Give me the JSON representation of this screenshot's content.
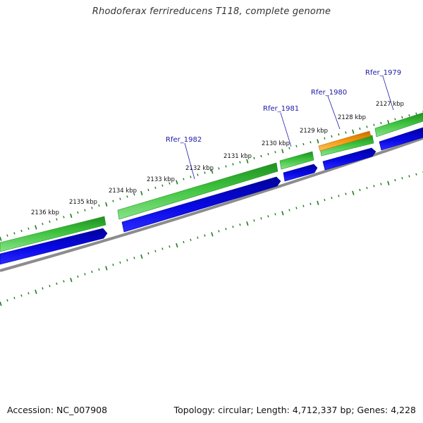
{
  "title": "Rhodoferax ferrireducens T118, complete genome",
  "accession_text": "Accession: NC_007908",
  "summary_text": "Topology: circular; Length: 4,712,337 bp; Genes: 4,228",
  "colors": {
    "forward_cds": "#3ec33e",
    "forward_cds_dark": "#1f8f1f",
    "forward_cds_light": "#88e388",
    "reverse_cds": "#0808e6",
    "reverse_cds_dark": "#00009a",
    "highlight_cds": "#f39a12",
    "highlight_cds_dark": "#c56c00",
    "backbone": "#888888",
    "tick": "#1e7a1e",
    "gene_label": "#1a1aa6"
  },
  "kbp_labels": [
    "2136 kbp",
    "2135 kbp",
    "2134 kbp",
    "2133 kbp",
    "2132 kbp",
    "2131 kbp",
    "2130 kbp",
    "2129 kbp",
    "2128 kbp",
    "2127 kbp"
  ],
  "gene_labels": [
    "Rfer_1982",
    "Rfer_1981",
    "Rfer_1980",
    "Rfer_1979"
  ]
}
